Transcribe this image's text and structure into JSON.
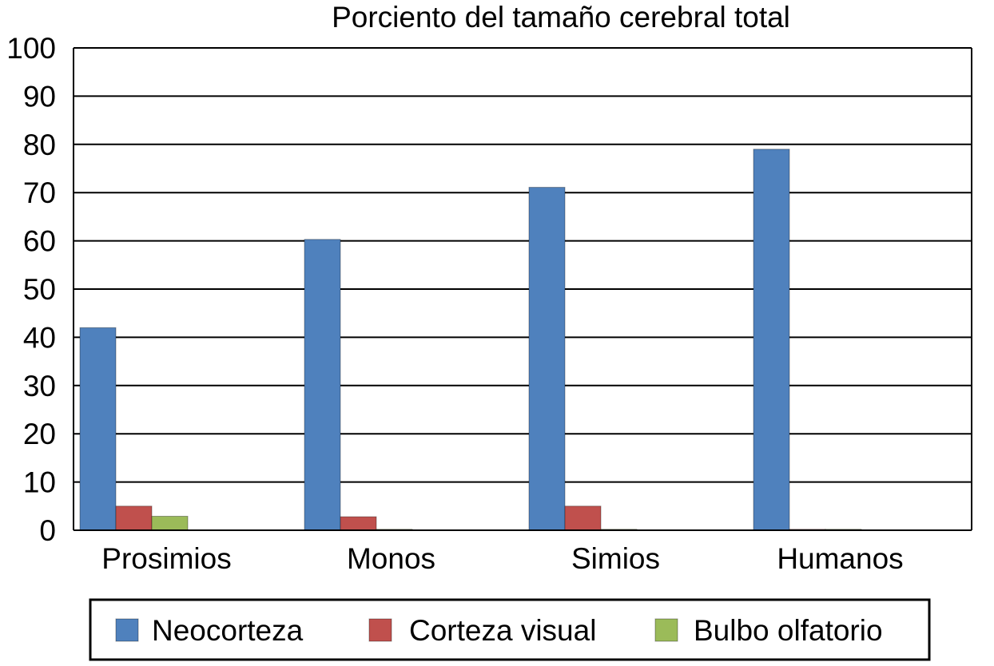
{
  "chart_data": {
    "type": "bar",
    "title": "Porciento del tamaño cerebral total",
    "xlabel": "",
    "ylabel": "",
    "ylim": [
      0,
      100
    ],
    "yticks": [
      0,
      10,
      20,
      30,
      40,
      50,
      60,
      70,
      80,
      90,
      100
    ],
    "grid": true,
    "legend_position": "bottom",
    "categories": [
      "Prosimios",
      "Monos",
      "Simios",
      "Humanos"
    ],
    "series": [
      {
        "name": "Neocorteza",
        "color": "#4f81bd",
        "values": [
          42,
          60.3,
          71.1,
          79
        ]
      },
      {
        "name": "Corteza visual",
        "color": "#c0504d",
        "values": [
          5,
          2.8,
          5,
          0.2
        ]
      },
      {
        "name": "Bulbo olfatorio",
        "color": "#9bbb59",
        "values": [
          2.9,
          0.2,
          0.2,
          0.2
        ]
      }
    ]
  }
}
